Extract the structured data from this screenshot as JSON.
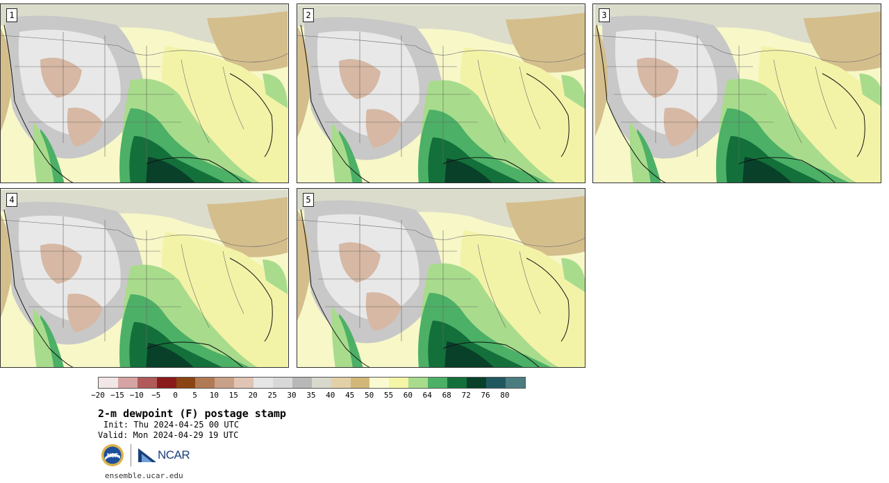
{
  "panels": [
    {
      "label": "1"
    },
    {
      "label": "2"
    },
    {
      "label": "3"
    },
    {
      "label": "4"
    },
    {
      "label": "5"
    }
  ],
  "colorbar": {
    "colors": [
      "#f3e6e6",
      "#d6a4a4",
      "#b05a5a",
      "#8b1a1a",
      "#8b4513",
      "#b07a55",
      "#c9a088",
      "#e0c4b4",
      "#e6e6e6",
      "#d8d8d8",
      "#b8b8b8",
      "#d8d8cc",
      "#e2d0a8",
      "#d2b878",
      "#fafad2",
      "#f5f5a8",
      "#a8dc8c",
      "#4cb066",
      "#14703a",
      "#08402a",
      "#205860",
      "#4a7c80"
    ],
    "ticks": [
      "−20",
      "−15",
      "−10",
      "−5",
      "0",
      "5",
      "10",
      "15",
      "20",
      "25",
      "30",
      "35",
      "40",
      "45",
      "50",
      "55",
      "60",
      "64",
      "68",
      "72",
      "76",
      "80"
    ]
  },
  "title": "2-m dewpoint (F) postage stamp",
  "init": "Init: Thu 2024-04-25 00 UTC",
  "valid": "Valid: Mon 2024-04-29 19 UTC",
  "logos": {
    "nsf": "NSF",
    "ncar": "NCAR"
  },
  "site": "ensemble.ucar.edu"
}
